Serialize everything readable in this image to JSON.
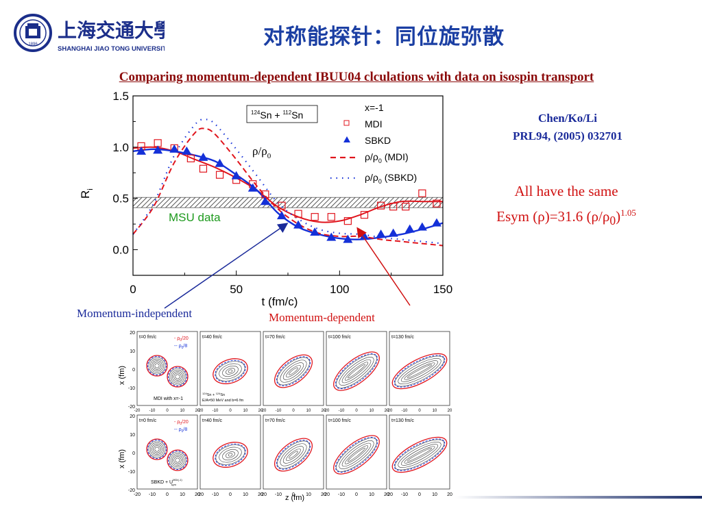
{
  "header": {
    "logo_chinese": "上海交通大學",
    "logo_english": "SHANGHAI JIAO TONG UNIVERSITY",
    "logo_year": "1896",
    "title": "对称能探针：同位旋弥散"
  },
  "subtitle": "Comparing momentum-dependent IBUU04 clculations with data on isospin transport",
  "citation": {
    "line1": "Chen/Ko/Li",
    "line2": "PRL94, (2005) 032701"
  },
  "esym_note": {
    "line1": "All have the same",
    "line2_prefix": "Esym (ρ)=31.6 (ρ/ρ",
    "line2_sub": "0",
    "line2_close": ")",
    "line2_sup": "1.05"
  },
  "annotations": {
    "momentum_independent": "Momentum-independent",
    "momentum_dependent": "Momentum-dependent"
  },
  "colors": {
    "title_blue": "#1b3fa3",
    "subtitle_red": "#8b0a0a",
    "mdi_red": "#e0141c",
    "sbkd_blue": "#1430d8",
    "msu_green": "#1e9a1e"
  },
  "chart_data": [
    {
      "type": "line",
      "xlabel": "t (fm/c)",
      "ylabel": "R",
      "ylabel_sub": "i",
      "xlim": [
        0,
        150
      ],
      "ylim": [
        -0.25,
        1.5
      ],
      "xticks": [
        "0",
        "50",
        "100",
        "150"
      ],
      "yticks": [
        "0.0",
        "0.5",
        "1.0",
        "1.5"
      ],
      "reaction_box": {
        "a1": "124",
        "e1": "Sn + ",
        "a2": "112",
        "e2": "Sn"
      },
      "msu_label": "MSU data",
      "msu_band": [
        0.41,
        0.51
      ],
      "rho_label_main": "ρ/ρ",
      "rho_label_sub": "0",
      "legend": {
        "x": "x=-1",
        "mdi": "MDI",
        "sbkd": "SBKD",
        "rho_mdi_pre": "ρ/ρ",
        "rho_mdi_sub": "0",
        "rho_mdi_post": " (MDI)",
        "rho_sbkd_pre": "ρ/ρ",
        "rho_sbkd_sub": "0",
        "rho_sbkd_post": " (SBKD)"
      },
      "series": [
        {
          "name": "MDI",
          "x": [
            4,
            12,
            20,
            28,
            34,
            42,
            50,
            58,
            64,
            72,
            80,
            88,
            96,
            104,
            112,
            120,
            126,
            132,
            140,
            147
          ],
          "y": [
            1.01,
            1.04,
            0.99,
            0.89,
            0.79,
            0.73,
            0.68,
            0.64,
            0.54,
            0.43,
            0.35,
            0.32,
            0.32,
            0.28,
            0.34,
            0.43,
            0.42,
            0.42,
            0.55,
            0.45
          ]
        },
        {
          "name": "SBKD",
          "x": [
            4,
            12,
            20,
            26,
            34,
            42,
            50,
            58,
            64,
            72,
            80,
            88,
            96,
            104,
            112,
            120,
            126,
            134,
            140,
            147
          ],
          "y": [
            0.96,
            0.97,
            0.98,
            0.96,
            0.9,
            0.84,
            0.72,
            0.6,
            0.47,
            0.33,
            0.24,
            0.17,
            0.12,
            0.1,
            0.13,
            0.15,
            0.16,
            0.2,
            0.22,
            0.26
          ]
        },
        {
          "name": "MDI curve",
          "x": [
            0,
            10,
            20,
            30,
            40,
            50,
            60,
            70,
            80,
            90,
            100,
            110,
            120,
            130,
            140,
            150
          ],
          "y": [
            0.99,
            1.0,
            0.96,
            0.88,
            0.8,
            0.7,
            0.58,
            0.42,
            0.32,
            0.27,
            0.28,
            0.34,
            0.42,
            0.47,
            0.47,
            0.47
          ]
        },
        {
          "name": "SBKD curve",
          "x": [
            0,
            10,
            20,
            30,
            40,
            50,
            60,
            70,
            80,
            90,
            100,
            110,
            120,
            130,
            140,
            150
          ],
          "y": [
            0.96,
            0.98,
            0.96,
            0.92,
            0.86,
            0.73,
            0.58,
            0.36,
            0.22,
            0.15,
            0.11,
            0.1,
            0.12,
            0.15,
            0.2,
            0.26
          ]
        },
        {
          "name": "ρ/ρ0 (MDI)",
          "x": [
            0,
            10,
            20,
            30,
            35,
            40,
            50,
            60,
            70,
            80,
            90,
            100,
            110,
            120,
            130,
            140,
            150
          ],
          "y": [
            0.15,
            0.42,
            0.85,
            1.14,
            1.18,
            1.12,
            0.88,
            0.62,
            0.4,
            0.25,
            0.16,
            0.13,
            0.13,
            0.1,
            0.08,
            0.06,
            0.04
          ]
        },
        {
          "name": "ρ/ρ0 (SBKD)",
          "x": [
            0,
            10,
            20,
            30,
            35,
            40,
            50,
            60,
            70,
            80,
            90,
            100,
            110,
            120,
            130,
            140,
            150
          ],
          "y": [
            0.15,
            0.45,
            0.92,
            1.22,
            1.27,
            1.22,
            0.98,
            0.72,
            0.46,
            0.3,
            0.2,
            0.16,
            0.15,
            0.12,
            0.1,
            0.08,
            0.06
          ]
        }
      ]
    },
    {
      "type": "heatmap",
      "xlabel": "z (fm)",
      "ylabel": "x (fm)",
      "xticks": [
        "-20",
        "-10",
        "0",
        "10",
        "20"
      ],
      "yticks": [
        "20",
        "10",
        "0",
        "-10",
        "-20"
      ],
      "times": [
        "t=0 fm/c",
        "t=40 fm/c",
        "t=70 fm/c",
        "t=100 fm/c",
        "t=130 fm/c"
      ],
      "legend_red_pre": "- ρ",
      "legend_red_sub": "0",
      "legend_red_post": "/20",
      "legend_blue_pre": "-- ρ",
      "legend_blue_sub": "0",
      "legend_blue_post": "/8",
      "row1_label": "MDI with x=-1",
      "row2_label": "SBKD + U",
      "row2_label_sup": "MDI(-1)",
      "row2_label_sub": "sym",
      "reaction_a1": "124",
      "reaction_e1": "Sn + ",
      "reaction_a2": "124",
      "reaction_e2": "Sn",
      "reaction_line2": "E/A=50 MeV and b=6 fm"
    }
  ]
}
